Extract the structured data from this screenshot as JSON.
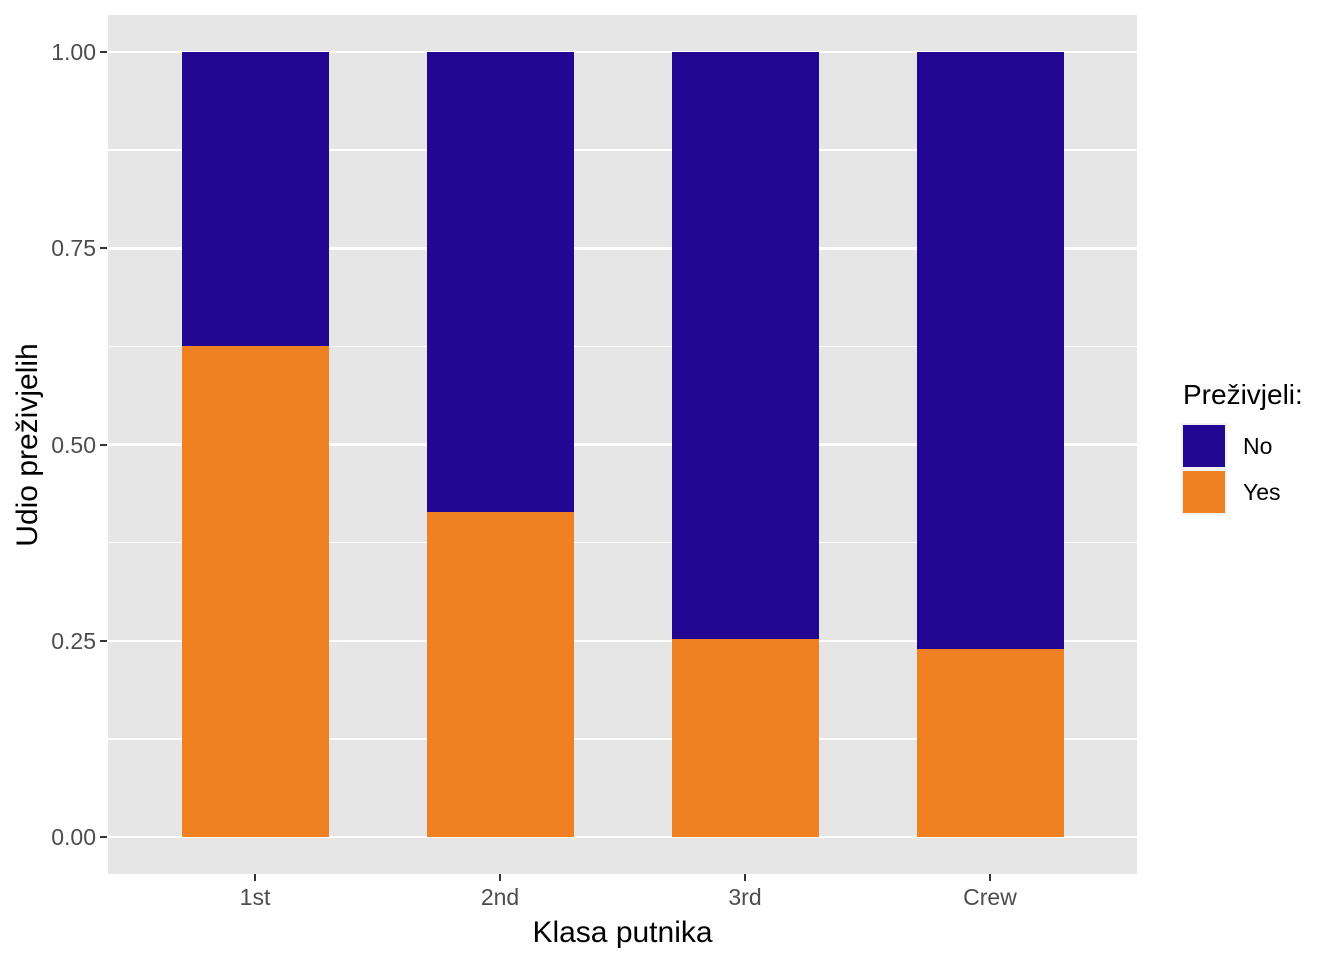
{
  "figure": {
    "background": "#FFFFFF",
    "panel_background": "#E6E6E6",
    "grid_color": "#FFFFFF",
    "axis_text_color": "#4D4D4D",
    "tick_mark_color": "#333333"
  },
  "chart_data": {
    "type": "bar",
    "subtype": "stacked-proportion",
    "title": "",
    "xlabel": "Klasa putnika",
    "ylabel": "Udio preživjelih",
    "categories": [
      "1st",
      "2nd",
      "3rd",
      "Crew"
    ],
    "series": [
      {
        "name": "Yes",
        "color": "#F08122",
        "values": [
          0.625,
          0.414,
          0.252,
          0.24
        ]
      },
      {
        "name": "No",
        "color": "#220792",
        "values": [
          0.375,
          0.586,
          0.748,
          0.76
        ]
      }
    ],
    "stack_order_bottom_to_top": [
      "Yes",
      "No"
    ],
    "ylim": [
      0,
      1
    ],
    "ytick_values": [
      0,
      0.25,
      0.5,
      0.75,
      1
    ],
    "ytick_labels": [
      "0.00",
      "0.25",
      "0.50",
      "0.75",
      "1.00"
    ],
    "ytick_minor_values": [
      0.125,
      0.375,
      0.625,
      0.875
    ],
    "grid": "white major and minor horizontal gridlines on grey panel",
    "legend": {
      "title": "Preživjeli:",
      "position": "right",
      "entries": [
        {
          "label": "No",
          "color": "#220792"
        },
        {
          "label": "Yes",
          "color": "#F08122"
        }
      ]
    }
  }
}
